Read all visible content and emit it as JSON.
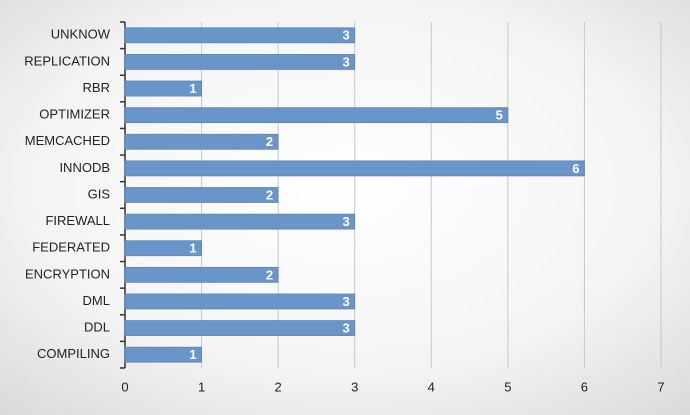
{
  "chart_data": {
    "type": "bar",
    "orientation": "horizontal",
    "categories": [
      "UNKNOW",
      "REPLICATION",
      "RBR",
      "OPTIMIZER",
      "MEMCACHED",
      "INNODB",
      "GIS",
      "FIREWALL",
      "FEDERATED",
      "ENCRYPTION",
      "DML",
      "DDL",
      "COMPILING"
    ],
    "values": [
      3,
      3,
      1,
      5,
      2,
      6,
      2,
      3,
      1,
      2,
      3,
      3,
      1
    ],
    "color": "#6a95c9",
    "xlim": [
      0,
      7
    ],
    "xticks": [
      0,
      1,
      2,
      3,
      4,
      5,
      6,
      7
    ],
    "grid": true
  }
}
